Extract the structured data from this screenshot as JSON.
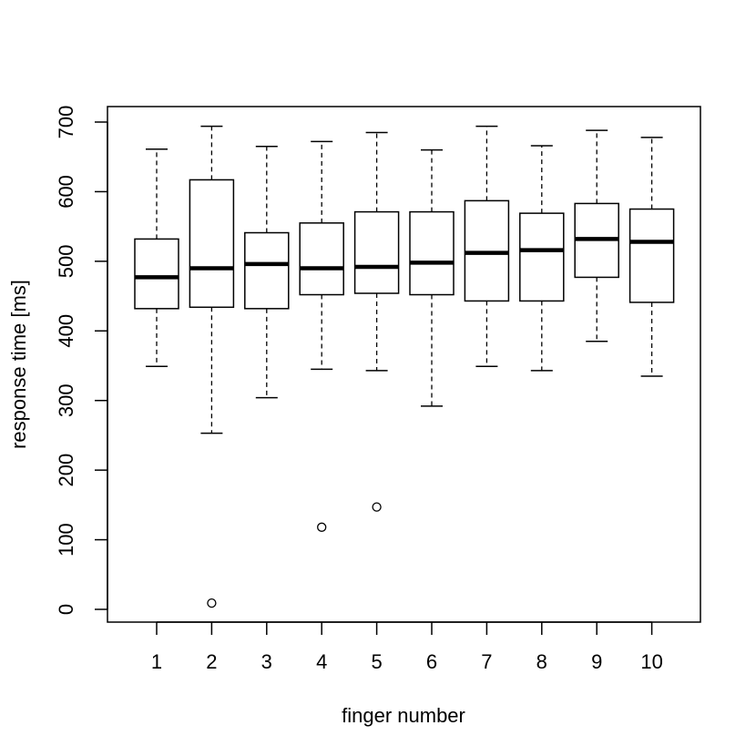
{
  "chart_data": {
    "type": "boxplot",
    "xlabel": "finger number",
    "ylabel": "response time [ms]",
    "ylim": [
      -18,
      720
    ],
    "yticks": [
      0,
      100,
      200,
      300,
      400,
      500,
      600,
      700
    ],
    "categories": [
      "1",
      "2",
      "3",
      "4",
      "5",
      "6",
      "7",
      "8",
      "9",
      "10"
    ],
    "boxes": [
      {
        "min": 349,
        "q1": 432,
        "median": 477,
        "q3": 532,
        "max": 661,
        "outliers": []
      },
      {
        "min": 253,
        "q1": 434,
        "median": 490,
        "q3": 617,
        "max": 694,
        "outliers": [
          9
        ]
      },
      {
        "min": 304,
        "q1": 432,
        "median": 496,
        "q3": 541,
        "max": 665,
        "outliers": []
      },
      {
        "min": 345,
        "q1": 452,
        "median": 490,
        "q3": 555,
        "max": 672,
        "outliers": [
          118
        ]
      },
      {
        "min": 343,
        "q1": 454,
        "median": 492,
        "q3": 571,
        "max": 685,
        "outliers": [
          147
        ]
      },
      {
        "min": 292,
        "q1": 452,
        "median": 498,
        "q3": 571,
        "max": 660,
        "outliers": []
      },
      {
        "min": 349,
        "q1": 443,
        "median": 512,
        "q3": 587,
        "max": 694,
        "outliers": []
      },
      {
        "min": 343,
        "q1": 443,
        "median": 516,
        "q3": 569,
        "max": 666,
        "outliers": []
      },
      {
        "min": 385,
        "q1": 477,
        "median": 532,
        "q3": 583,
        "max": 688,
        "outliers": []
      },
      {
        "min": 335,
        "q1": 441,
        "median": 528,
        "q3": 575,
        "max": 678,
        "outliers": []
      }
    ]
  }
}
